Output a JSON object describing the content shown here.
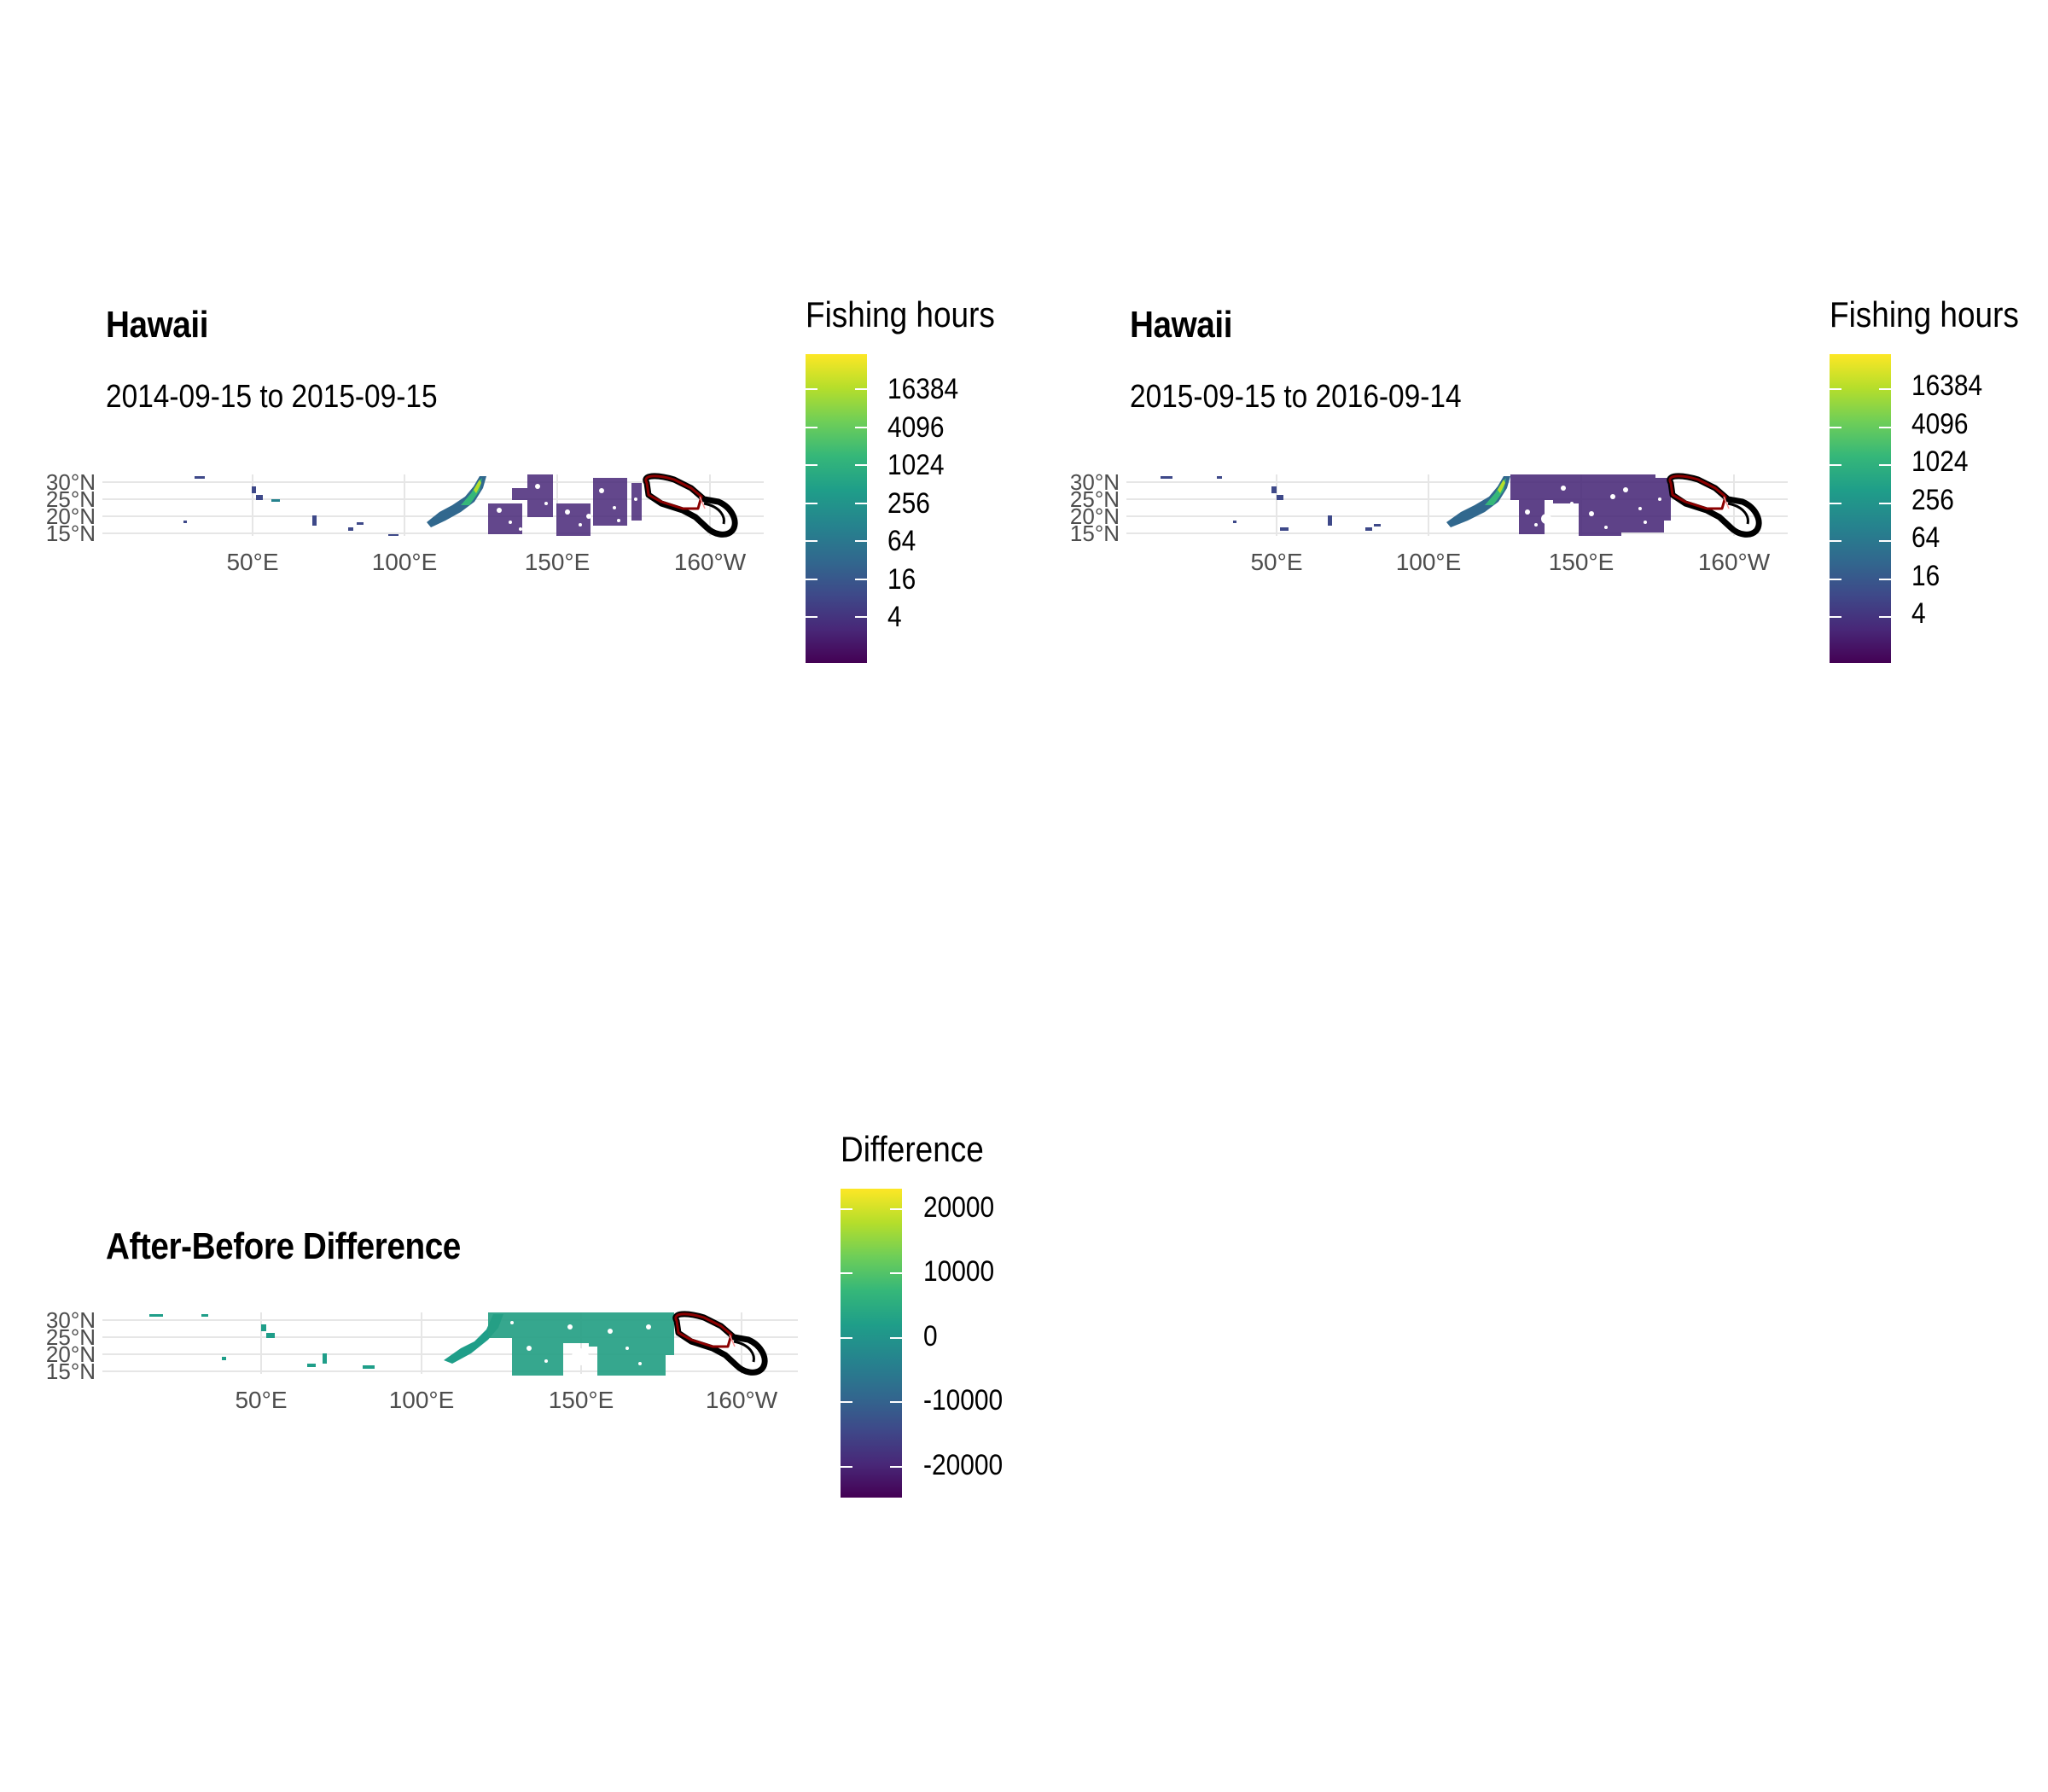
{
  "panels": [
    {
      "title": "Hawaii",
      "subtitle": "2014-09-15 to 2015-09-15",
      "y_ticks": [
        "30°N",
        "25°N",
        "20°N",
        "15°N"
      ],
      "x_ticks": [
        "50°E",
        "100°E",
        "150°E",
        "160°W"
      ],
      "legend": {
        "title": "Fishing hours",
        "labels": [
          "16384",
          "4096",
          "1024",
          "256",
          "64",
          "16",
          "4"
        ]
      }
    },
    {
      "title": "Hawaii",
      "subtitle": "2015-09-15 to 2016-09-14",
      "y_ticks": [
        "30°N",
        "25°N",
        "20°N",
        "15°N"
      ],
      "x_ticks": [
        "50°E",
        "100°E",
        "150°E",
        "160°W"
      ],
      "legend": {
        "title": "Fishing hours",
        "labels": [
          "16384",
          "4096",
          "1024",
          "256",
          "64",
          "16",
          "4"
        ]
      }
    },
    {
      "title": "After-Before Difference",
      "y_ticks": [
        "30°N",
        "25°N",
        "20°N",
        "15°N"
      ],
      "x_ticks": [
        "50°E",
        "100°E",
        "150°E",
        "160°W"
      ],
      "legend": {
        "title": "Difference",
        "labels": [
          "20000",
          "10000",
          "0",
          "-10000",
          "-20000"
        ]
      }
    }
  ],
  "colors": {
    "viridis": [
      "#440154",
      "#482878",
      "#3e4989",
      "#31688e",
      "#26828e",
      "#1f9e89",
      "#35b779",
      "#6ece58",
      "#b5de2b",
      "#fde725"
    ],
    "eez_outer": "#000000",
    "eez_inner": "#8b0000",
    "grid": "#e6e6e6"
  }
}
